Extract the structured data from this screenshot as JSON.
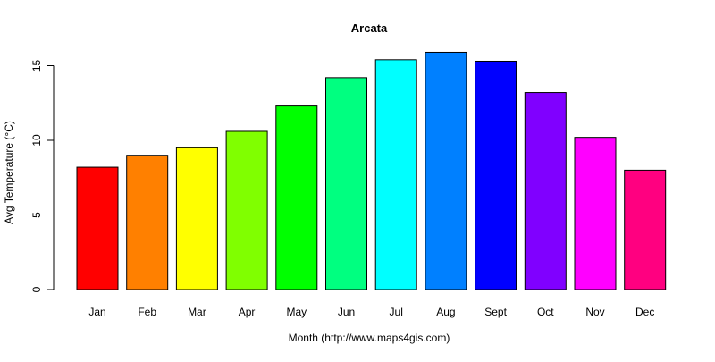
{
  "chart_data": {
    "type": "bar",
    "title": "Arcata",
    "xlabel": "Month (http://www.maps4gis.com)",
    "ylabel": "Avg Temperature (°C)",
    "categories": [
      "Jan",
      "Feb",
      "Mar",
      "Apr",
      "May",
      "Jun",
      "Jul",
      "Aug",
      "Sept",
      "Oct",
      "Nov",
      "Dec"
    ],
    "values": [
      8.2,
      9.0,
      9.5,
      10.6,
      12.3,
      14.2,
      15.4,
      15.9,
      15.3,
      13.2,
      10.2,
      8.0
    ],
    "colors": [
      "#FF0000",
      "#FF8000",
      "#FFFF00",
      "#80FF00",
      "#00FF00",
      "#00FF80",
      "#00FFFF",
      "#0080FF",
      "#0000FF",
      "#8000FF",
      "#FF00FF",
      "#FF0080"
    ],
    "yticks": [
      0,
      5,
      10,
      15
    ],
    "ylim": [
      0,
      15.9
    ],
    "grid": false,
    "legend": "none"
  }
}
